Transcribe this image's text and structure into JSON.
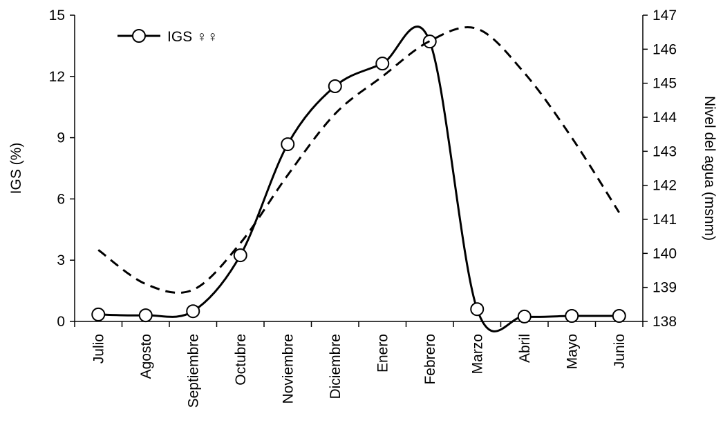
{
  "chart_data": {
    "type": "line",
    "categories": [
      "Julio",
      "Agosto",
      "Septiembre",
      "Octubre",
      "Noviembre",
      "Diciembre",
      "Enero",
      "Febrero",
      "Marzo",
      "Abril",
      "Mayo",
      "Junio"
    ],
    "series": [
      {
        "name": "IGS ♀♀",
        "color": "#000000",
        "values": [
          0.34,
          0.3,
          0.5,
          3.24,
          8.68,
          11.52,
          12.63,
          13.71,
          0.6,
          0.24,
          0.27,
          0.27
        ]
      },
      {
        "color": "#000000",
        "axis": "y2",
        "dashed": true,
        "values": [
          140.1,
          139.1,
          138.93,
          140.3,
          142.3,
          144.1,
          145.2,
          146.24,
          146.6,
          145.3,
          143.4,
          141.2
        ]
      }
    ],
    "ylabel": "IGS (%)",
    "y2label": "Nivel del agua (msnm)",
    "ylim": [
      0,
      15
    ],
    "yticks": [
      0,
      3,
      6,
      9,
      12,
      15
    ],
    "y2lim": [
      138,
      147
    ],
    "y2ticks": [
      138,
      139,
      140,
      141,
      142,
      143,
      144,
      145,
      146,
      147
    ],
    "legend": "upper left"
  }
}
